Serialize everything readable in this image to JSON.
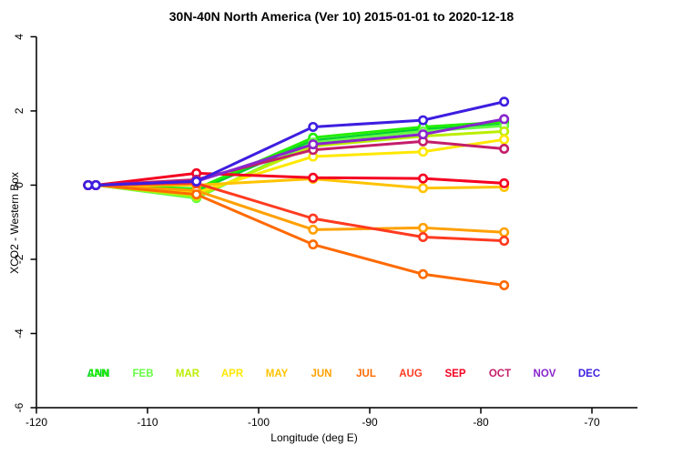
{
  "chart_data": {
    "type": "line",
    "title": "30N-40N North America (Ver 10)   2015-01-01 to 2020-12-18",
    "xlabel": "Longitude (deg E)",
    "ylabel": "XCO2 - Western Box",
    "xlim": [
      -120,
      -70
    ],
    "ylim": [
      -6,
      4
    ],
    "xticks": [
      -120,
      -110,
      -100,
      -90,
      -80,
      -70
    ],
    "yticks": [
      4,
      2,
      0,
      -2,
      -4,
      -6
    ],
    "grid": false,
    "legend_position": "bottom-inside-row",
    "marker": "open-circle",
    "x": [
      -115.35,
      -114.65,
      -105.6,
      -95.1,
      -85.2,
      -77.9
    ],
    "series": [
      {
        "name": "ANN",
        "color": "#00CC33",
        "values": [
          0,
          0,
          -0.15,
          1.2,
          1.5,
          1.63
        ]
      },
      {
        "name": "JAN",
        "color": "#22EE00",
        "values": [
          0,
          0,
          -0.1,
          1.28,
          1.57,
          1.7
        ]
      },
      {
        "name": "FEB",
        "color": "#66FF44",
        "values": [
          0,
          0,
          -0.35,
          1.15,
          1.45,
          1.6
        ]
      },
      {
        "name": "MAR",
        "color": "#BBEE00",
        "values": [
          0,
          0,
          -0.3,
          1.05,
          1.32,
          1.45
        ]
      },
      {
        "name": "APR",
        "color": "#FFE800",
        "values": [
          0,
          0,
          -0.2,
          0.77,
          0.9,
          1.23
        ]
      },
      {
        "name": "MAY",
        "color": "#FFC300",
        "values": [
          0,
          0,
          0.0,
          0.17,
          -0.08,
          -0.05
        ]
      },
      {
        "name": "JUN",
        "color": "#FFA000",
        "values": [
          0,
          0,
          -0.15,
          -1.2,
          -1.15,
          -1.27
        ]
      },
      {
        "name": "JUL",
        "color": "#FF6A00",
        "values": [
          0,
          0,
          -0.25,
          -1.6,
          -2.4,
          -2.7
        ]
      },
      {
        "name": "AUG",
        "color": "#FF3A20",
        "values": [
          0,
          0,
          0.05,
          -0.9,
          -1.4,
          -1.5
        ]
      },
      {
        "name": "SEP",
        "color": "#F50021",
        "values": [
          0,
          0,
          0.32,
          0.2,
          0.18,
          0.05
        ]
      },
      {
        "name": "OCT",
        "color": "#C41E6A",
        "values": [
          0,
          0,
          0.15,
          0.95,
          1.18,
          0.98
        ]
      },
      {
        "name": "NOV",
        "color": "#8826CC",
        "values": [
          0,
          0,
          0.1,
          1.1,
          1.37,
          1.78
        ]
      },
      {
        "name": "DEC",
        "color": "#3D1EE0",
        "values": [
          0,
          0,
          0.1,
          1.57,
          1.75,
          2.25
        ]
      }
    ],
    "legend_items": [
      {
        "label": "ANN",
        "color": "#00CC33"
      },
      {
        "label": "JAN",
        "color": "#22EE00"
      },
      {
        "label": "FEB",
        "color": "#66FF44"
      },
      {
        "label": "MAR",
        "color": "#BBEE00"
      },
      {
        "label": "APR",
        "color": "#FFE800"
      },
      {
        "label": "MAY",
        "color": "#FFC300"
      },
      {
        "label": "JUN",
        "color": "#FFA000"
      },
      {
        "label": "JUL",
        "color": "#FF6A00"
      },
      {
        "label": "AUG",
        "color": "#FF3A20"
      },
      {
        "label": "SEP",
        "color": "#F50021"
      },
      {
        "label": "OCT",
        "color": "#C41E6A"
      },
      {
        "label": "NOV",
        "color": "#8826CC"
      },
      {
        "label": "DEC",
        "color": "#3D1EE0"
      }
    ]
  }
}
